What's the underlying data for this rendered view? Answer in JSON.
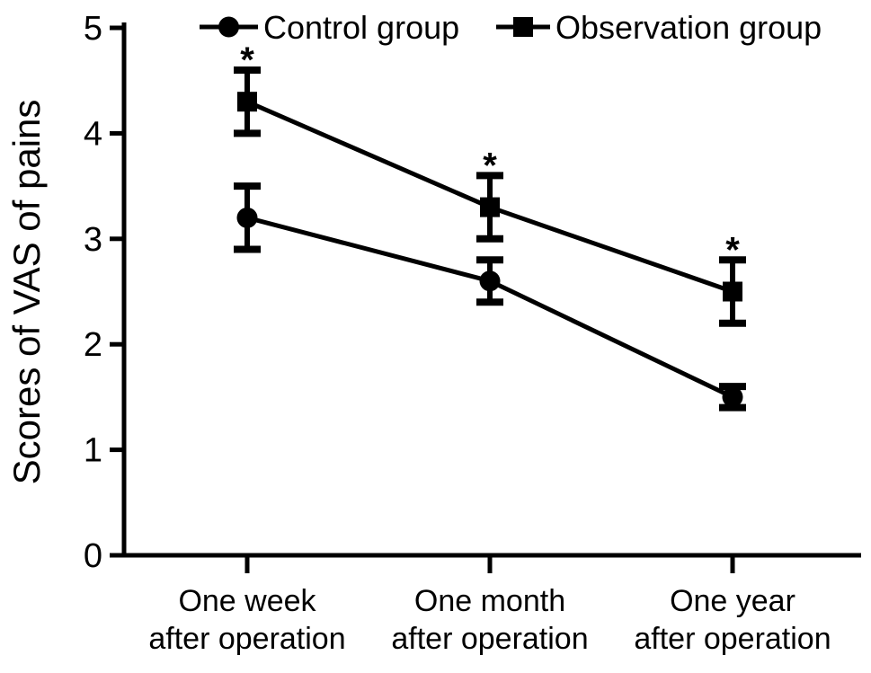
{
  "chart_data": {
    "type": "line",
    "title": "",
    "xlabel": "",
    "ylabel": "Scores of VAS of pains",
    "categories": [
      "One week\nafter operation",
      "One month\nafter operation",
      "One year\nafter operation"
    ],
    "ylim": [
      0,
      5
    ],
    "yticks": [
      0,
      1,
      2,
      3,
      4,
      5
    ],
    "grid": false,
    "legend_position": "top",
    "error_bars": true,
    "annotation_symbol": "*",
    "series": [
      {
        "name": "Control group",
        "marker": "circle",
        "values": [
          3.2,
          2.6,
          1.5
        ],
        "errors": [
          0.3,
          0.2,
          0.1
        ],
        "significance": [
          "",
          "",
          ""
        ]
      },
      {
        "name": "Observation group",
        "marker": "square",
        "values": [
          4.3,
          3.3,
          2.5
        ],
        "errors": [
          0.3,
          0.3,
          0.3
        ],
        "significance": [
          "*",
          "*",
          "*"
        ]
      }
    ],
    "colors": {
      "line": "#000000",
      "background": "#ffffff"
    }
  }
}
